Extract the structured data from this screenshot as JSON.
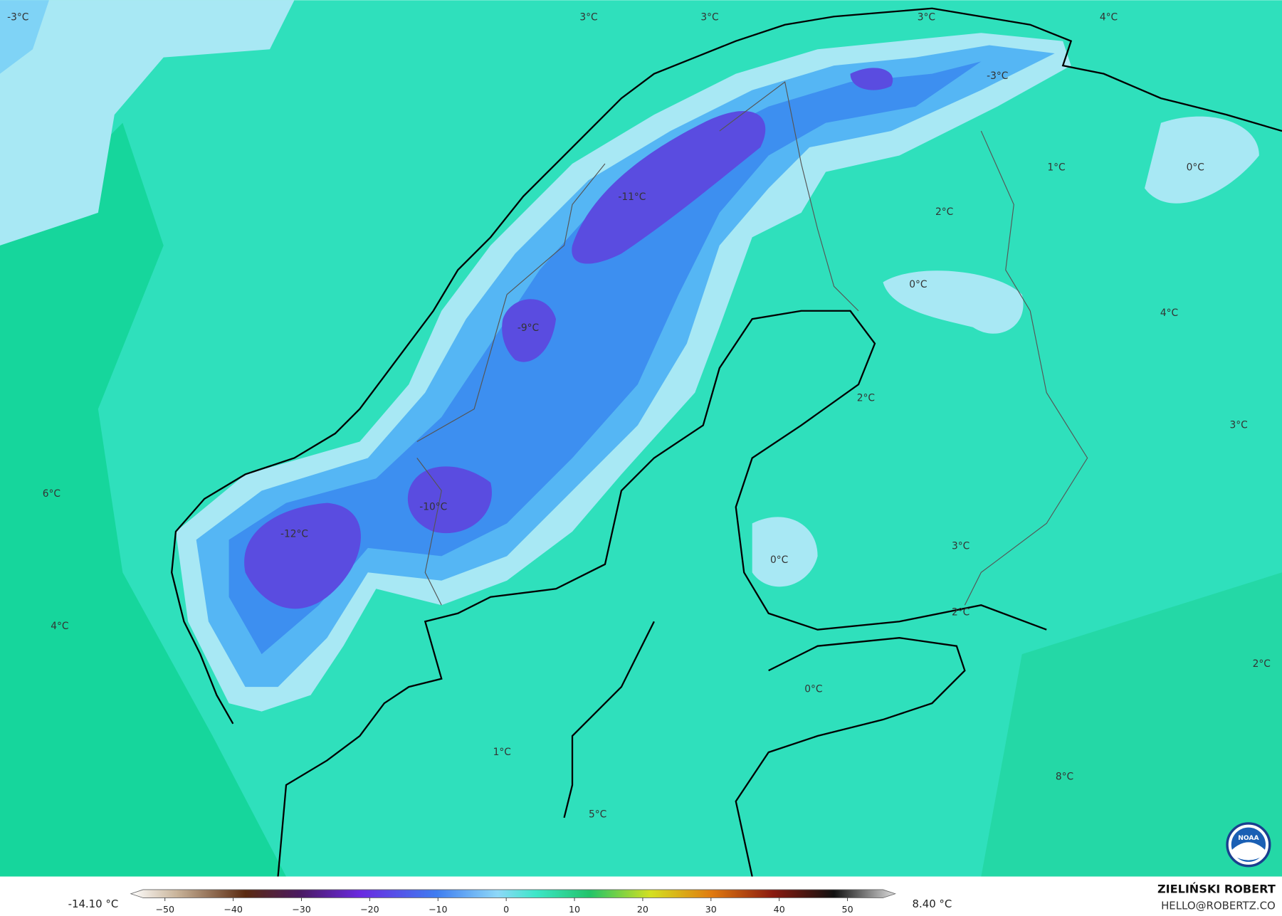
{
  "map": {
    "labels": [
      "-3°C",
      "3°C",
      "3°C",
      "3°C",
      "4°C",
      "-3°C",
      "1°C",
      "0°C",
      "-11°C",
      "2°C",
      "0°C",
      "4°C",
      "-9°C",
      "2°C",
      "3°C",
      "6°C",
      "-10°C",
      "-12°C",
      "3°C",
      "0°C",
      "2°C",
      "4°C",
      "2°C",
      "0°C",
      "1°C",
      "8°C",
      "5°C"
    ],
    "min_label": "-14.10 °C",
    "max_label": "8.40 °C",
    "colorbar": {
      "lim": [
        -55,
        57
      ],
      "ticks": [
        {
          "value": -50,
          "label": "−50"
        },
        {
          "value": -40,
          "label": "−40"
        },
        {
          "value": -30,
          "label": "−30"
        },
        {
          "value": -20,
          "label": "−20"
        },
        {
          "value": -10,
          "label": "−10"
        },
        0,
        10,
        20,
        30,
        40,
        50
      ]
    },
    "author": "ZIELIŃSKI ROBERT",
    "contact": "HELLO@ROBERTZ.CO",
    "logo": "NOAA"
  }
}
